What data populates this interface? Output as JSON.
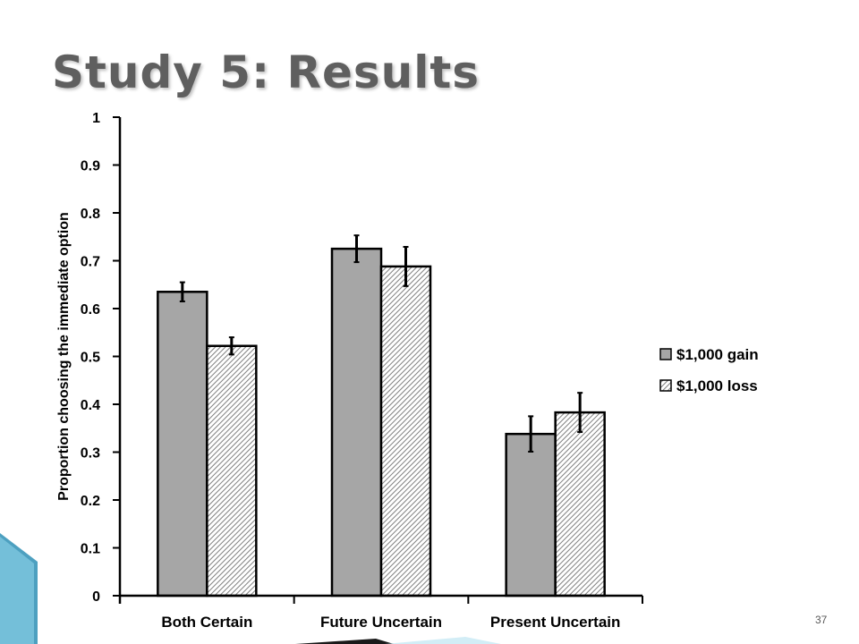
{
  "slide": {
    "title": "Study 5: Results",
    "page_number": "37"
  },
  "colors": {
    "gain_bar": "#a6a6a6",
    "loss_bar_stripe": "#7f7f7f",
    "axis": "#000000",
    "title": "#5f5f5f",
    "corner_teal": "#2e8fb5"
  },
  "chart_data": {
    "type": "bar",
    "title": "",
    "xlabel": "",
    "ylabel": "Proportion choosing the immediate option",
    "ylim": [
      0,
      1
    ],
    "yticks": [
      "0",
      "0.1",
      "0.2",
      "0.3",
      "0.4",
      "0.5",
      "0.6",
      "0.7",
      "0.8",
      "0.9",
      "1"
    ],
    "ytick_values": [
      0,
      0.1,
      0.2,
      0.3,
      0.4,
      0.5,
      0.6,
      0.7,
      0.8,
      0.9,
      1
    ],
    "grid": false,
    "legend_position": "right",
    "categories": [
      "Both Certain",
      "Future Uncertain",
      "Present Uncertain"
    ],
    "series": [
      {
        "name": "$1,000 gain",
        "style": "solid-gray",
        "values": [
          0.635,
          0.725,
          0.338
        ],
        "error": [
          0.02,
          0.028,
          0.037
        ]
      },
      {
        "name": "$1,000 loss",
        "style": "hatched",
        "values": [
          0.522,
          0.688,
          0.383
        ],
        "error": [
          0.018,
          0.041,
          0.041
        ]
      }
    ]
  }
}
